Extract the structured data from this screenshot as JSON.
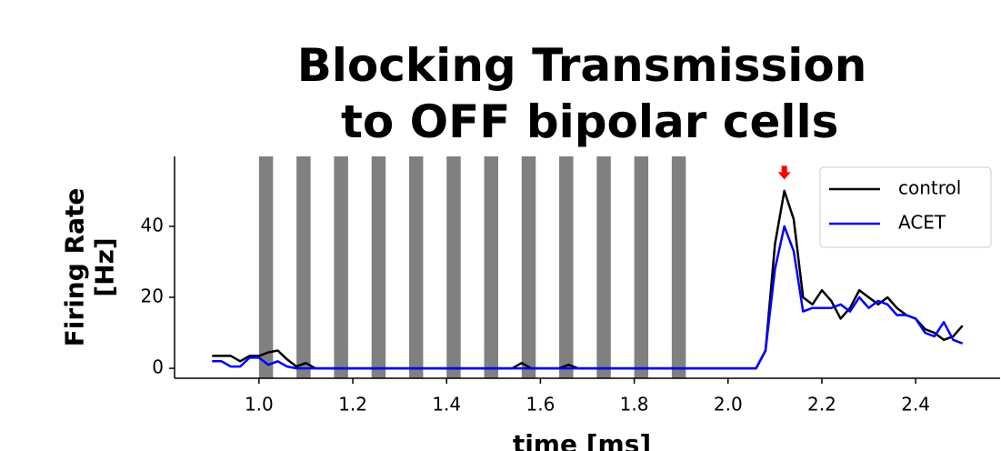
{
  "chart_data": {
    "type": "line",
    "title": "Blocking Transmission\n to OFF bipolar cells",
    "xlabel": "time [ms]",
    "ylabel": "Firing Rate\n[Hz]",
    "x": [
      0.9,
      0.92,
      0.94,
      0.96,
      0.98,
      1.0,
      1.02,
      1.04,
      1.06,
      1.08,
      1.1,
      1.12,
      1.14,
      1.16,
      1.18,
      1.2,
      1.22,
      1.24,
      1.26,
      1.28,
      1.3,
      1.32,
      1.34,
      1.36,
      1.38,
      1.4,
      1.42,
      1.44,
      1.46,
      1.48,
      1.5,
      1.52,
      1.54,
      1.56,
      1.58,
      1.6,
      1.62,
      1.64,
      1.66,
      1.68,
      1.7,
      1.72,
      1.74,
      1.76,
      1.78,
      1.8,
      1.82,
      1.84,
      1.86,
      1.88,
      1.9,
      1.92,
      1.94,
      1.96,
      1.98,
      2.0,
      2.02,
      2.04,
      2.06,
      2.08,
      2.1,
      2.12,
      2.14,
      2.16,
      2.18,
      2.2,
      2.22,
      2.24,
      2.26,
      2.28,
      2.3,
      2.32,
      2.34,
      2.36,
      2.38,
      2.4,
      2.42,
      2.44,
      2.46,
      2.48,
      2.5
    ],
    "series": [
      {
        "name": "control",
        "color": "#000000",
        "values": [
          3.5,
          3.5,
          3.5,
          2,
          3.5,
          3.5,
          4.5,
          5,
          2.5,
          0.5,
          1.5,
          0,
          0,
          0,
          0,
          0,
          0,
          0,
          0,
          0,
          0,
          0,
          0,
          0,
          0,
          0,
          0,
          0,
          0,
          0,
          0,
          0,
          0,
          1.5,
          0,
          0,
          0,
          0,
          1,
          0,
          0,
          0,
          0,
          0,
          0,
          0,
          0,
          0,
          0,
          0,
          0,
          0,
          0,
          0,
          0,
          0,
          0,
          0,
          0,
          5,
          35,
          50,
          42,
          20,
          18,
          22,
          19,
          14,
          17,
          22,
          20,
          18,
          20,
          17,
          15,
          14,
          11,
          10,
          8,
          9,
          12
        ]
      },
      {
        "name": "ACET",
        "color": "#0000ff",
        "values": [
          2,
          2,
          0.5,
          0.5,
          3,
          3,
          1,
          2,
          0.5,
          0,
          0,
          0,
          0,
          0,
          0,
          0,
          0,
          0,
          0,
          0,
          0,
          0,
          0,
          0,
          0,
          0,
          0,
          0,
          0,
          0,
          0,
          0,
          0,
          0,
          0,
          0,
          0,
          0,
          0,
          0,
          0,
          0,
          0,
          0,
          0,
          0,
          0,
          0,
          0,
          0,
          0,
          0,
          0,
          0,
          0,
          0,
          0,
          0,
          0,
          5,
          28,
          40,
          33,
          16,
          17,
          17,
          17,
          18,
          16,
          20,
          17,
          19,
          18,
          15,
          15,
          14,
          10,
          9,
          13,
          8,
          7
        ]
      }
    ],
    "shaded_regions": [
      [
        1.0,
        1.03
      ],
      [
        1.08,
        1.11
      ],
      [
        1.16,
        1.19
      ],
      [
        1.24,
        1.27
      ],
      [
        1.32,
        1.35
      ],
      [
        1.4,
        1.43
      ],
      [
        1.48,
        1.51
      ],
      [
        1.56,
        1.59
      ],
      [
        1.64,
        1.67
      ],
      [
        1.72,
        1.75
      ],
      [
        1.8,
        1.83
      ],
      [
        1.88,
        1.91
      ]
    ],
    "shade_color": "#808080",
    "marker": {
      "x": 2.12,
      "y": 55,
      "color": "#ff0000"
    },
    "xlim": [
      0.82,
      2.58
    ],
    "ylim": [
      -2.8,
      59.7
    ],
    "xticks": [
      {
        "value": 1.0,
        "label": "1.0"
      },
      1.2,
      1.4,
      1.6,
      1.8,
      {
        "value": 2.0,
        "label": "2.0"
      },
      2.2,
      2.4
    ],
    "yticks": [
      0,
      20,
      40
    ],
    "legend": "upper right"
  }
}
